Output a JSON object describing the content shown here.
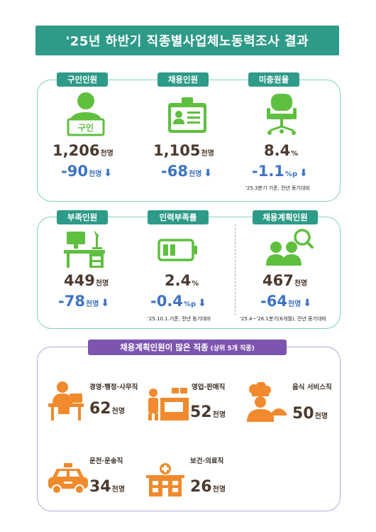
{
  "title": "'25년 하반기 직종별사업체노동력조사 결과",
  "colors": {
    "teal": "#2e9a88",
    "purple": "#7d55b0",
    "green": "#5fbf3f",
    "orange": "#f08a2c",
    "blue": "#3d73c4"
  },
  "stats_row1": [
    {
      "tab": "구인인원",
      "value": "1,206",
      "unit": "천명",
      "delta": "-90",
      "delta_unit": "천명",
      "arrow": "⬇",
      "icon": "recruiter-sign-icon",
      "sign_text": "구인"
    },
    {
      "tab": "채용인원",
      "value": "1,105",
      "unit": "천명",
      "delta": "-68",
      "delta_unit": "천명",
      "arrow": "⬇",
      "icon": "id-card-icon"
    },
    {
      "tab": "미충원율",
      "value": "8.4",
      "unit": "%",
      "delta": "-1.1",
      "delta_unit": "%p",
      "arrow": "⬇",
      "icon": "office-chair-icon",
      "note": "'25.3분기 기준, 전년 동기대비"
    }
  ],
  "stats_row2": [
    {
      "tab": "부족인원",
      "value": "449",
      "unit": "천명",
      "delta": "-78",
      "delta_unit": "천명",
      "arrow": "⬇",
      "icon": "empty-desk-icon"
    },
    {
      "tab": "인력부족률",
      "value": "2.4",
      "unit": "%",
      "delta": "-0.4",
      "delta_unit": "%p",
      "arrow": "⬇",
      "icon": "battery-icon",
      "note": "'25.10.1.기준, 전년 동기대비"
    },
    {
      "tab": "채용계획인원",
      "value": "467",
      "unit": "천명",
      "delta": "-64",
      "delta_unit": "천명",
      "arrow": "⬇",
      "icon": "people-search-icon",
      "note": "'25.4~'26.1분기(6개월), 전년 동기대비"
    }
  ],
  "occupations_tab": "채용계획인원이 많은 직종",
  "occupations_tab_suffix": "(상위 5개 직종)",
  "occupations": [
    {
      "label": "경영·행정·사무직",
      "value": "62",
      "unit": "천명",
      "icon": "office-worker-icon"
    },
    {
      "label": "영업·판매직",
      "value": "52",
      "unit": "천명",
      "icon": "sales-counter-icon"
    },
    {
      "label": "음식 서비스직",
      "value": "50",
      "unit": "천명",
      "icon": "chef-icon"
    },
    {
      "label": "운전·운송직",
      "value": "34",
      "unit": "천명",
      "icon": "taxi-icon"
    },
    {
      "label": "보건·의료직",
      "value": "26",
      "unit": "천명",
      "icon": "hospital-icon"
    }
  ]
}
